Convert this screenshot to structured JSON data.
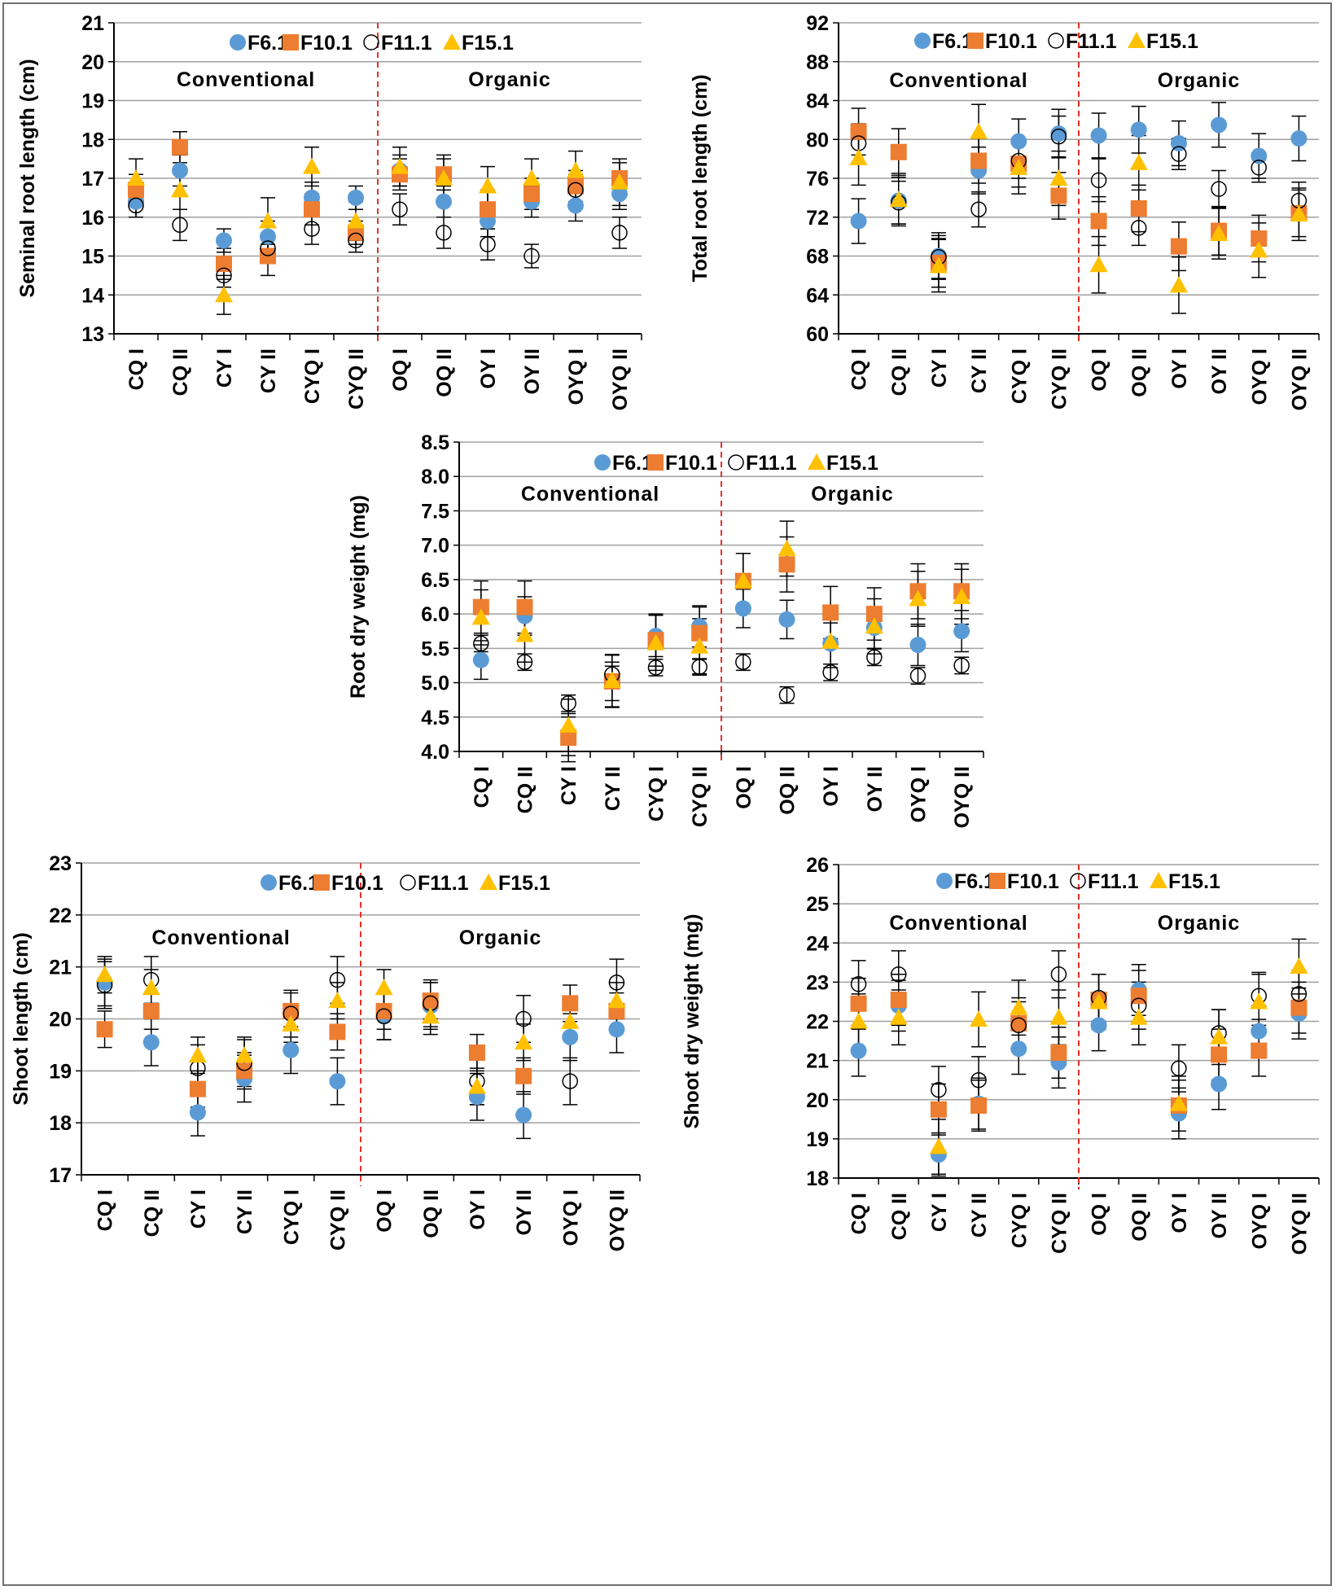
{
  "figure": {
    "background": "#ffffff",
    "border_color": "#6f6f6f"
  },
  "styles": {
    "grid_color": "#a0a0a0",
    "divider_color": "#e8302a",
    "error_bar_color": "#000000",
    "series": [
      {
        "name": "F6.1",
        "marker": "circle",
        "fill": "#5b9bd5",
        "stroke": "none"
      },
      {
        "name": "F10.1",
        "marker": "square",
        "fill": "#ed7d31",
        "stroke": "none"
      },
      {
        "name": "F11.1",
        "marker": "circle-open",
        "fill": "none",
        "stroke": "#000000"
      },
      {
        "name": "F15.1",
        "marker": "triangle",
        "fill": "#ffc000",
        "stroke": "none"
      }
    ]
  },
  "chart_data": [
    {
      "id": "seminal",
      "type": "scatter",
      "ylabel": "Seminal root length (cm)",
      "ylim": [
        13,
        21
      ],
      "yticks": [
        13,
        14,
        15,
        16,
        17,
        18,
        19,
        20,
        21
      ],
      "categories": [
        "CQ I",
        "CQ II",
        "CY I",
        "CY II",
        "CYQ I",
        "CYQ II",
        "OQ I",
        "OQ II",
        "OY I",
        "OY II",
        "OYQ I",
        "OYQ II"
      ],
      "groups": [
        "Conventional",
        "Organic"
      ],
      "legend_labels": [
        "F6.1",
        "F10.1",
        "F11.1",
        "F15.1"
      ],
      "series": [
        {
          "name": "F6.1",
          "values": [
            16.4,
            17.2,
            15.4,
            15.5,
            16.5,
            16.5,
            17.2,
            16.4,
            15.9,
            16.4,
            16.3,
            16.6
          ],
          "errors": [
            0.4,
            0.4,
            0.3,
            0.4,
            0.4,
            0.3,
            0.4,
            0.4,
            0.4,
            0.4,
            0.4,
            0.4
          ]
        },
        {
          "name": "F10.1",
          "values": [
            16.7,
            17.8,
            14.8,
            15.0,
            16.2,
            15.6,
            17.1,
            17.1,
            16.2,
            16.6,
            16.8,
            17.0
          ],
          "errors": [
            0.4,
            0.4,
            0.4,
            0.5,
            0.4,
            0.3,
            0.4,
            0.4,
            0.5,
            0.4,
            0.4,
            0.4
          ]
        },
        {
          "name": "F11.1",
          "values": [
            16.3,
            15.8,
            14.5,
            15.2,
            15.7,
            15.4,
            16.2,
            15.6,
            15.3,
            15.0,
            16.7,
            15.6
          ],
          "errors": [
            0.3,
            0.4,
            0.3,
            0.3,
            0.4,
            0.3,
            0.4,
            0.4,
            0.4,
            0.3,
            0.4,
            0.4
          ]
        },
        {
          "name": "F15.1",
          "values": [
            17.0,
            16.7,
            14.0,
            15.9,
            17.3,
            15.9,
            17.3,
            17.0,
            16.8,
            17.0,
            17.2,
            16.9
          ],
          "errors": [
            0.5,
            0.5,
            0.5,
            0.6,
            0.5,
            0.5,
            0.5,
            0.6,
            0.5,
            0.5,
            0.5,
            0.6
          ]
        }
      ]
    },
    {
      "id": "total",
      "type": "scatter",
      "ylabel": "Total root length (cm)",
      "ylim": [
        60,
        92
      ],
      "yticks": [
        60,
        64,
        68,
        72,
        76,
        80,
        84,
        88,
        92
      ],
      "categories": [
        "CQ I",
        "CQ II",
        "CY I",
        "CY II",
        "CYQ I",
        "CYQ II",
        "OQ I",
        "OQ II",
        "OY I",
        "OY II",
        "OYQ I",
        "OYQ II"
      ],
      "groups": [
        "Conventional",
        "Organic"
      ],
      "legend_labels": [
        "F6.1",
        "F10.1",
        "F11.1",
        "F15.1"
      ],
      "series": [
        {
          "name": "F6.1",
          "values": [
            71.6,
            73.7,
            68.0,
            76.8,
            79.8,
            80.6,
            80.4,
            81.0,
            79.6,
            81.5,
            78.3,
            80.1
          ],
          "errors": [
            2.3,
            2.4,
            2.4,
            2.4,
            2.3,
            2.5,
            2.3,
            2.4,
            2.3,
            2.3,
            2.3,
            2.3
          ]
        },
        {
          "name": "F10.1",
          "values": [
            80.8,
            78.7,
            67.3,
            77.8,
            77.5,
            74.2,
            71.6,
            72.9,
            69.0,
            70.6,
            69.8,
            72.4
          ],
          "errors": [
            2.4,
            2.4,
            2.5,
            2.3,
            2.4,
            2.4,
            2.5,
            2.4,
            2.5,
            2.5,
            2.4,
            2.4
          ]
        },
        {
          "name": "F11.1",
          "values": [
            79.6,
            73.5,
            67.9,
            72.8,
            77.8,
            80.3,
            75.8,
            70.9,
            78.5,
            74.9,
            77.1,
            73.7
          ],
          "errors": [
            2.0,
            2.2,
            2.2,
            1.8,
            1.8,
            2.1,
            2.2,
            1.8,
            1.6,
            1.9,
            1.5,
            1.9
          ]
        },
        {
          "name": "F15.1",
          "values": [
            78.1,
            73.8,
            67.0,
            80.8,
            77.1,
            76.0,
            67.1,
            77.6,
            65.0,
            70.3,
            68.6,
            72.3
          ],
          "errors": [
            2.8,
            2.7,
            2.7,
            2.8,
            2.7,
            2.8,
            2.9,
            2.8,
            2.9,
            2.6,
            2.8,
            2.7
          ]
        }
      ]
    },
    {
      "id": "rootdw",
      "type": "scatter",
      "ylabel": "Root dry weight (mg)",
      "ylim": [
        4.0,
        8.5
      ],
      "yticks": [
        4.0,
        4.5,
        5.0,
        5.5,
        6.0,
        6.5,
        7.0,
        7.5,
        8.0,
        8.5
      ],
      "categories": [
        "CQ I",
        "CQ II",
        "CY I",
        "CY II",
        "CYQ I",
        "CYQ II",
        "OQ I",
        "OQ II",
        "OY I",
        "OY II",
        "OYQ I",
        "OYQ II"
      ],
      "groups": [
        "Conventional",
        "Organic"
      ],
      "legend_labels": [
        "F6.1",
        "F10.1",
        "F11.1",
        "F15.1"
      ],
      "series": [
        {
          "name": "F6.1",
          "values": [
            5.33,
            5.97,
            4.22,
            5.02,
            5.68,
            5.82,
            6.08,
            5.92,
            5.57,
            5.8,
            5.55,
            5.75
          ],
          "errors": [
            0.28,
            0.28,
            0.28,
            0.28,
            0.3,
            0.3,
            0.28,
            0.28,
            0.3,
            0.3,
            0.3,
            0.3
          ]
        },
        {
          "name": "F10.1",
          "values": [
            6.1,
            6.1,
            4.2,
            5.02,
            5.62,
            5.72,
            6.48,
            6.72,
            6.02,
            6.0,
            6.33,
            6.33
          ],
          "errors": [
            0.38,
            0.38,
            0.35,
            0.38,
            0.38,
            0.38,
            0.4,
            0.4,
            0.38,
            0.38,
            0.4,
            0.4
          ]
        },
        {
          "name": "F11.1",
          "values": [
            5.57,
            5.3,
            4.7,
            5.12,
            5.22,
            5.23,
            5.3,
            4.82,
            5.15,
            5.37,
            5.1,
            5.25
          ],
          "errors": [
            0.12,
            0.12,
            0.12,
            0.12,
            0.12,
            0.12,
            0.12,
            0.12,
            0.12,
            0.12,
            0.12,
            0.12
          ]
        },
        {
          "name": "F15.1",
          "values": [
            5.95,
            5.7,
            4.38,
            5.03,
            5.58,
            5.53,
            6.48,
            6.95,
            5.6,
            5.82,
            6.22,
            6.25
          ],
          "errors": [
            0.4,
            0.4,
            0.38,
            0.38,
            0.4,
            0.4,
            0.4,
            0.4,
            0.38,
            0.4,
            0.4,
            0.4
          ]
        }
      ]
    },
    {
      "id": "shootlen",
      "type": "scatter",
      "ylabel": "Shoot length (cm)",
      "ylim": [
        17,
        23
      ],
      "yticks": [
        17,
        18,
        19,
        20,
        21,
        22,
        23
      ],
      "categories": [
        "CQ I",
        "CQ II",
        "CY I",
        "CY II",
        "CYQ I",
        "CYQ II",
        "OQ I",
        "OQ II",
        "OY I",
        "OY II",
        "OYQ I",
        "OYQ II"
      ],
      "groups": [
        "Conventional",
        "Organic"
      ],
      "legend_labels": [
        "F6.1",
        "F10.1",
        "F11.1",
        "F15.1"
      ],
      "series": [
        {
          "name": "F6.1",
          "values": [
            20.7,
            19.55,
            18.2,
            18.85,
            19.4,
            18.8,
            20.05,
            20.25,
            18.5,
            18.15,
            19.65,
            19.8
          ],
          "errors": [
            0.45,
            0.45,
            0.45,
            0.45,
            0.45,
            0.45,
            0.45,
            0.45,
            0.45,
            0.45,
            0.45,
            0.45
          ]
        },
        {
          "name": "F10.1",
          "values": [
            19.8,
            20.15,
            18.65,
            19.0,
            20.15,
            19.75,
            20.15,
            20.35,
            19.35,
            18.9,
            20.3,
            20.15
          ],
          "errors": [
            0.35,
            0.35,
            0.35,
            0.35,
            0.35,
            0.35,
            0.35,
            0.35,
            0.35,
            0.35,
            0.35,
            0.35
          ]
        },
        {
          "name": "F11.1",
          "values": [
            20.65,
            20.75,
            19.05,
            19.15,
            20.1,
            20.75,
            20.05,
            20.3,
            18.8,
            20.0,
            18.8,
            20.7
          ],
          "errors": [
            0.45,
            0.45,
            0.45,
            0.45,
            0.45,
            0.45,
            0.45,
            0.45,
            0.45,
            0.45,
            0.45,
            0.45
          ]
        },
        {
          "name": "F15.1",
          "values": [
            20.85,
            20.6,
            19.3,
            19.3,
            19.9,
            20.35,
            20.6,
            20.05,
            18.7,
            19.55,
            19.95,
            20.35
          ],
          "errors": [
            0.35,
            0.35,
            0.35,
            0.35,
            0.35,
            0.35,
            0.35,
            0.35,
            0.35,
            0.35,
            0.35,
            0.35
          ]
        }
      ]
    },
    {
      "id": "shootdw",
      "type": "scatter",
      "ylabel": "Shoot dry weight (mg)",
      "ylim": [
        18,
        26
      ],
      "yticks": [
        18,
        19,
        20,
        21,
        22,
        23,
        24,
        25,
        26
      ],
      "categories": [
        "CQ I",
        "CQ II",
        "CY I",
        "CY II",
        "CYQ I",
        "CYQ II",
        "OQ I",
        "OQ II",
        "OY I",
        "OY II",
        "OYQ I",
        "OYQ II"
      ],
      "groups": [
        "Conventional",
        "Organic"
      ],
      "legend_labels": [
        "F6.1",
        "F10.1",
        "F11.1",
        "F15.1"
      ],
      "series": [
        {
          "name": "F6.1",
          "values": [
            21.25,
            22.4,
            18.6,
            19.9,
            21.3,
            20.95,
            21.9,
            22.8,
            19.65,
            20.4,
            21.75,
            22.2
          ],
          "errors": [
            0.65,
            0.65,
            0.55,
            0.65,
            0.65,
            0.65,
            0.65,
            0.65,
            0.65,
            0.65,
            0.65,
            0.65
          ]
        },
        {
          "name": "F10.1",
          "values": [
            22.45,
            22.55,
            19.75,
            19.85,
            21.95,
            21.2,
            22.55,
            22.65,
            19.85,
            21.15,
            21.25,
            22.35
          ],
          "errors": [
            0.65,
            0.65,
            0.65,
            0.65,
            0.65,
            0.65,
            0.65,
            0.65,
            0.65,
            0.65,
            0.65,
            0.65
          ]
        },
        {
          "name": "F11.1",
          "values": [
            22.95,
            23.2,
            20.25,
            20.5,
            21.9,
            23.2,
            22.6,
            22.4,
            20.8,
            21.7,
            22.65,
            22.7
          ],
          "errors": [
            0.6,
            0.6,
            0.6,
            0.6,
            0.6,
            0.6,
            0.6,
            0.6,
            0.6,
            0.6,
            0.6,
            0.6
          ]
        },
        {
          "name": "F15.1",
          "values": [
            22.0,
            22.1,
            18.8,
            22.05,
            22.35,
            22.1,
            22.5,
            22.1,
            19.9,
            21.6,
            22.5,
            23.4
          ],
          "errors": [
            0.7,
            0.7,
            0.7,
            0.7,
            0.7,
            0.7,
            0.7,
            0.7,
            0.7,
            0.7,
            0.7,
            0.7
          ]
        }
      ]
    }
  ]
}
